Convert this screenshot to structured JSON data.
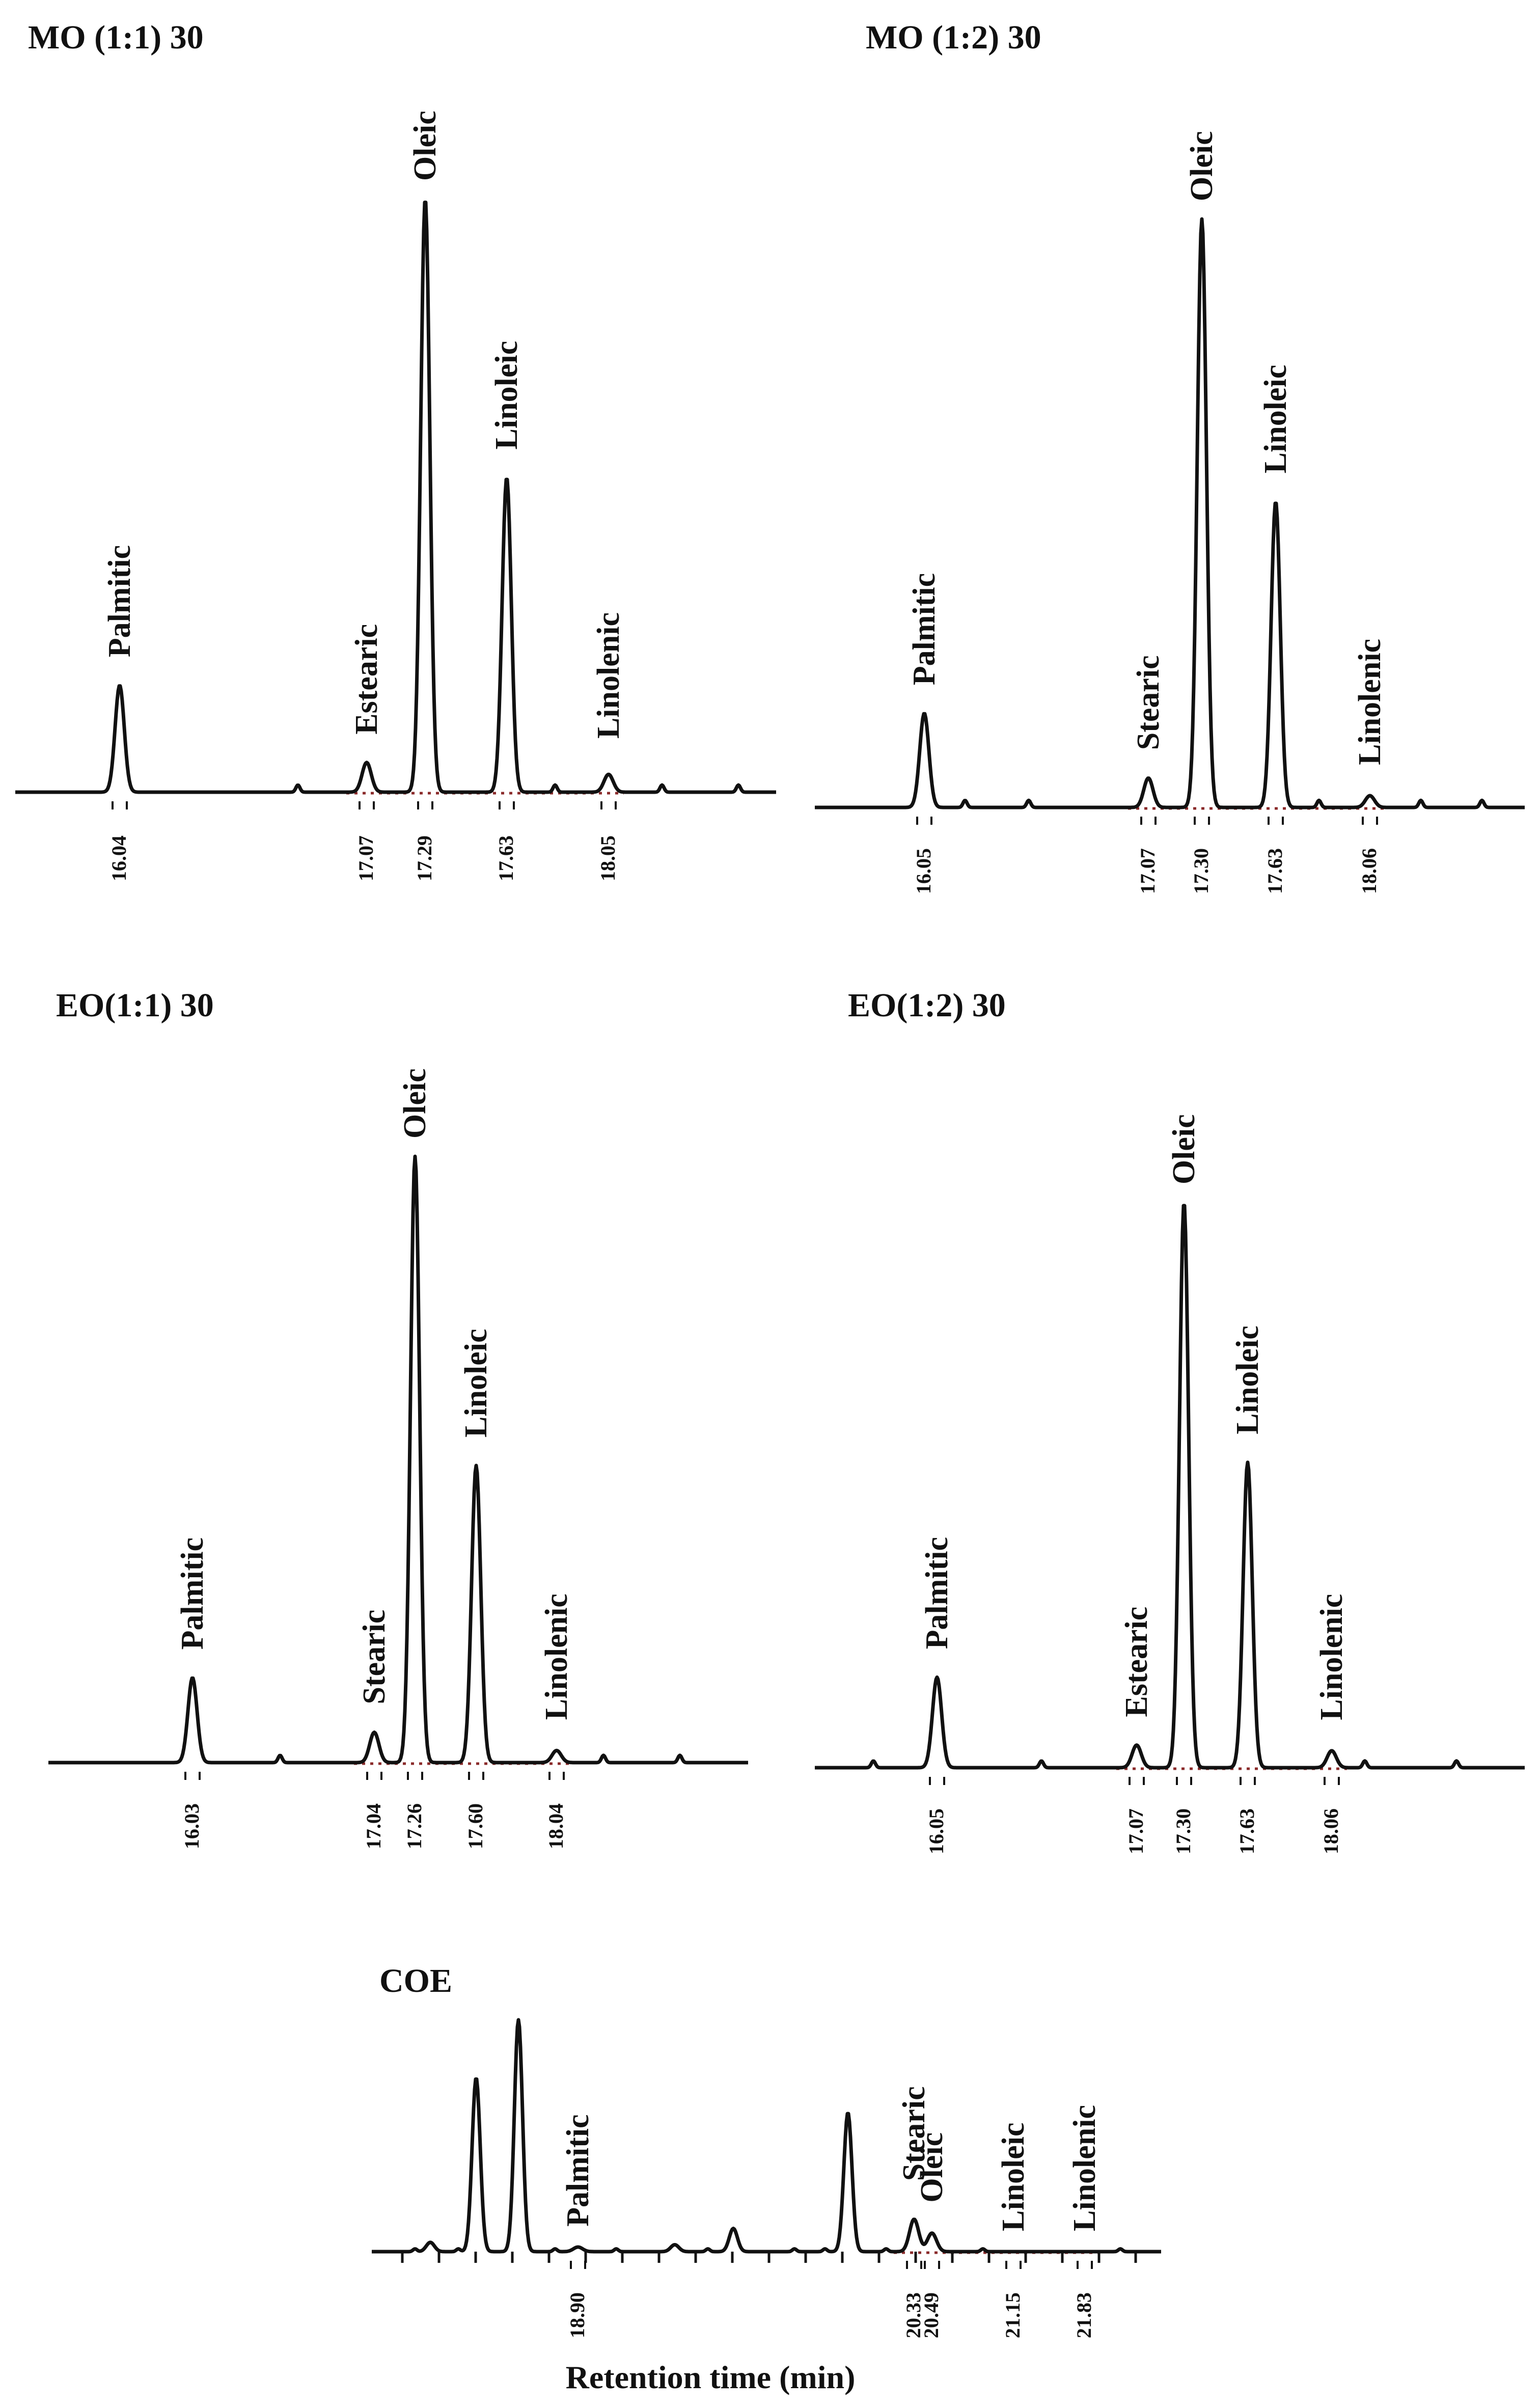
{
  "colors": {
    "trace": "#111111",
    "baseline_dots": "#8a2a2a",
    "background": "#ffffff"
  },
  "chart_data": [
    {
      "type": "line",
      "title": "MO (1:1) 30",
      "peaks": [
        {
          "name": "Palmitic",
          "rt": "16.04",
          "height": 0.18
        },
        {
          "name": "Estearic",
          "rt": "17.07",
          "height": 0.05
        },
        {
          "name": "Oleic",
          "rt": "17.29",
          "height": 1.0
        },
        {
          "name": "Linoleic",
          "rt": "17.63",
          "height": 0.53
        },
        {
          "name": "Linolenic",
          "rt": "18.05",
          "height": 0.03
        }
      ]
    },
    {
      "type": "line",
      "title": "MO (1:2) 30",
      "peaks": [
        {
          "name": "Palmitic",
          "rt": "16.05",
          "height": 0.16
        },
        {
          "name": "Stearic",
          "rt": "17.07",
          "height": 0.05
        },
        {
          "name": "Oleic",
          "rt": "17.30",
          "height": 1.0
        },
        {
          "name": "Linoleic",
          "rt": "17.63",
          "height": 0.52
        },
        {
          "name": "Linolenic",
          "rt": "18.06",
          "height": 0.02
        }
      ]
    },
    {
      "type": "line",
      "title": "EO(1:1) 30",
      "peaks": [
        {
          "name": "Palmitic",
          "rt": "16.03",
          "height": 0.14
        },
        {
          "name": "Stearic",
          "rt": "17.04",
          "height": 0.05
        },
        {
          "name": "Oleic",
          "rt": "17.26",
          "height": 1.0
        },
        {
          "name": "Linoleic",
          "rt": "17.60",
          "height": 0.49
        },
        {
          "name": "Linolenic",
          "rt": "18.04",
          "height": 0.02
        }
      ]
    },
    {
      "type": "line",
      "title": "EO(1:2) 30",
      "peaks": [
        {
          "name": "Palmitic",
          "rt": "16.05",
          "height": 0.16
        },
        {
          "name": "Estearic",
          "rt": "17.07",
          "height": 0.04
        },
        {
          "name": "Oleic",
          "rt": "17.30",
          "height": 1.0
        },
        {
          "name": "Linoleic",
          "rt": "17.63",
          "height": 0.54
        },
        {
          "name": "Linolenic",
          "rt": "18.06",
          "height": 0.03
        }
      ]
    },
    {
      "type": "line",
      "title": "COE",
      "xlabel": "Retention time (min)",
      "peaks": [
        {
          "name": "Palmitic",
          "rt": "18.90",
          "height": 0.02
        },
        {
          "name": "Stearic",
          "rt": "20.33",
          "height": 0.14
        },
        {
          "name": "Oleic",
          "rt": "20.49",
          "height": 0.08
        },
        {
          "name": "Linoleic",
          "rt": "21.15",
          "height": 0.0
        },
        {
          "name": "Linolenic",
          "rt": "21.83",
          "height": 0.0
        }
      ],
      "unlabeled_peaks": [
        {
          "height": 0.04
        },
        {
          "height": 1.0
        },
        {
          "height": 0.03
        },
        {
          "height": 0.1
        },
        {
          "height": 0.6
        },
        {
          "height": 0.75
        }
      ]
    }
  ]
}
